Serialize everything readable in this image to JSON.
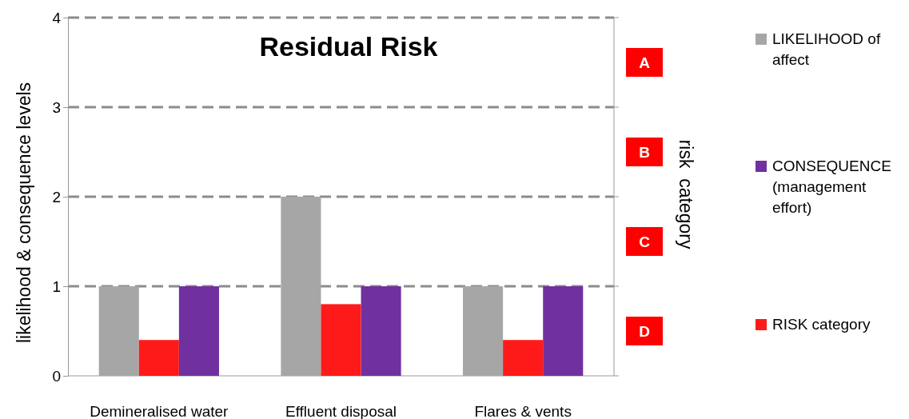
{
  "chart_data": {
    "type": "bar",
    "title": "Residual Risk",
    "ylabel": "likelihood & consequence levels",
    "y2label": "risk  category",
    "categories": [
      "Demineralised water",
      "Effluent disposal",
      "Flares & vents"
    ],
    "series": [
      {
        "name": "LIKELIHOOD of affect",
        "color": "#a6a6a6",
        "values": [
          1,
          2,
          1
        ]
      },
      {
        "name": "RISK category",
        "color": "#ff1a1a",
        "values": [
          0.4,
          0.8,
          0.4
        ]
      },
      {
        "name": "CONSEQUENCE (management effort)",
        "color": "#7030a0",
        "values": [
          1,
          1,
          1
        ]
      }
    ],
    "ylim": [
      0,
      4
    ],
    "yticks": [
      0,
      1,
      2,
      3,
      4
    ],
    "annotations": [
      "A",
      "B",
      "C",
      "D"
    ],
    "grid": "y",
    "line_style": "dashed",
    "legend": "right"
  }
}
